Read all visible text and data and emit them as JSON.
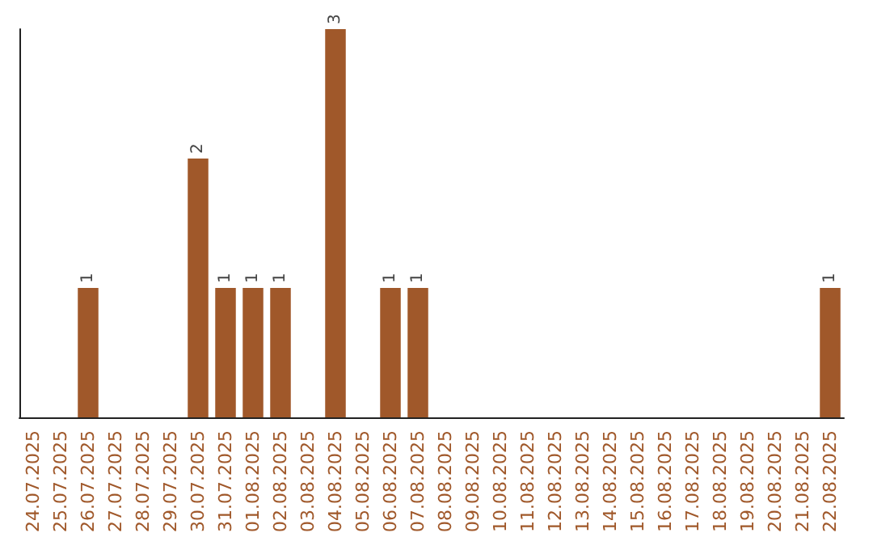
{
  "chart_data": {
    "type": "bar",
    "categories": [
      "24.07.2025",
      "25.07.2025",
      "26.07.2025",
      "27.07.2025",
      "28.07.2025",
      "29.07.2025",
      "30.07.2025",
      "31.07.2025",
      "01.08.2025",
      "02.08.2025",
      "03.08.2025",
      "04.08.2025",
      "05.08.2025",
      "06.08.2025",
      "07.08.2025",
      "08.08.2025",
      "09.08.2025",
      "10.08.2025",
      "11.08.2025",
      "12.08.2025",
      "13.08.2025",
      "14.08.2025",
      "15.08.2025",
      "16.08.2025",
      "17.08.2025",
      "18.08.2025",
      "19.08.2025",
      "20.08.2025",
      "21.08.2025",
      "22.08.2025"
    ],
    "values": [
      0,
      0,
      1,
      0,
      0,
      0,
      2,
      1,
      1,
      1,
      0,
      3,
      0,
      1,
      1,
      0,
      0,
      0,
      0,
      0,
      0,
      0,
      0,
      0,
      0,
      0,
      0,
      0,
      0,
      1
    ],
    "value_labels": [
      null,
      null,
      "1",
      null,
      null,
      null,
      "2",
      "1",
      "1",
      "1",
      null,
      "3",
      null,
      "1",
      "1",
      null,
      null,
      null,
      null,
      null,
      null,
      null,
      null,
      null,
      null,
      null,
      null,
      null,
      null,
      "1"
    ],
    "color": "#a0582a",
    "tick_labels": "x"
  }
}
